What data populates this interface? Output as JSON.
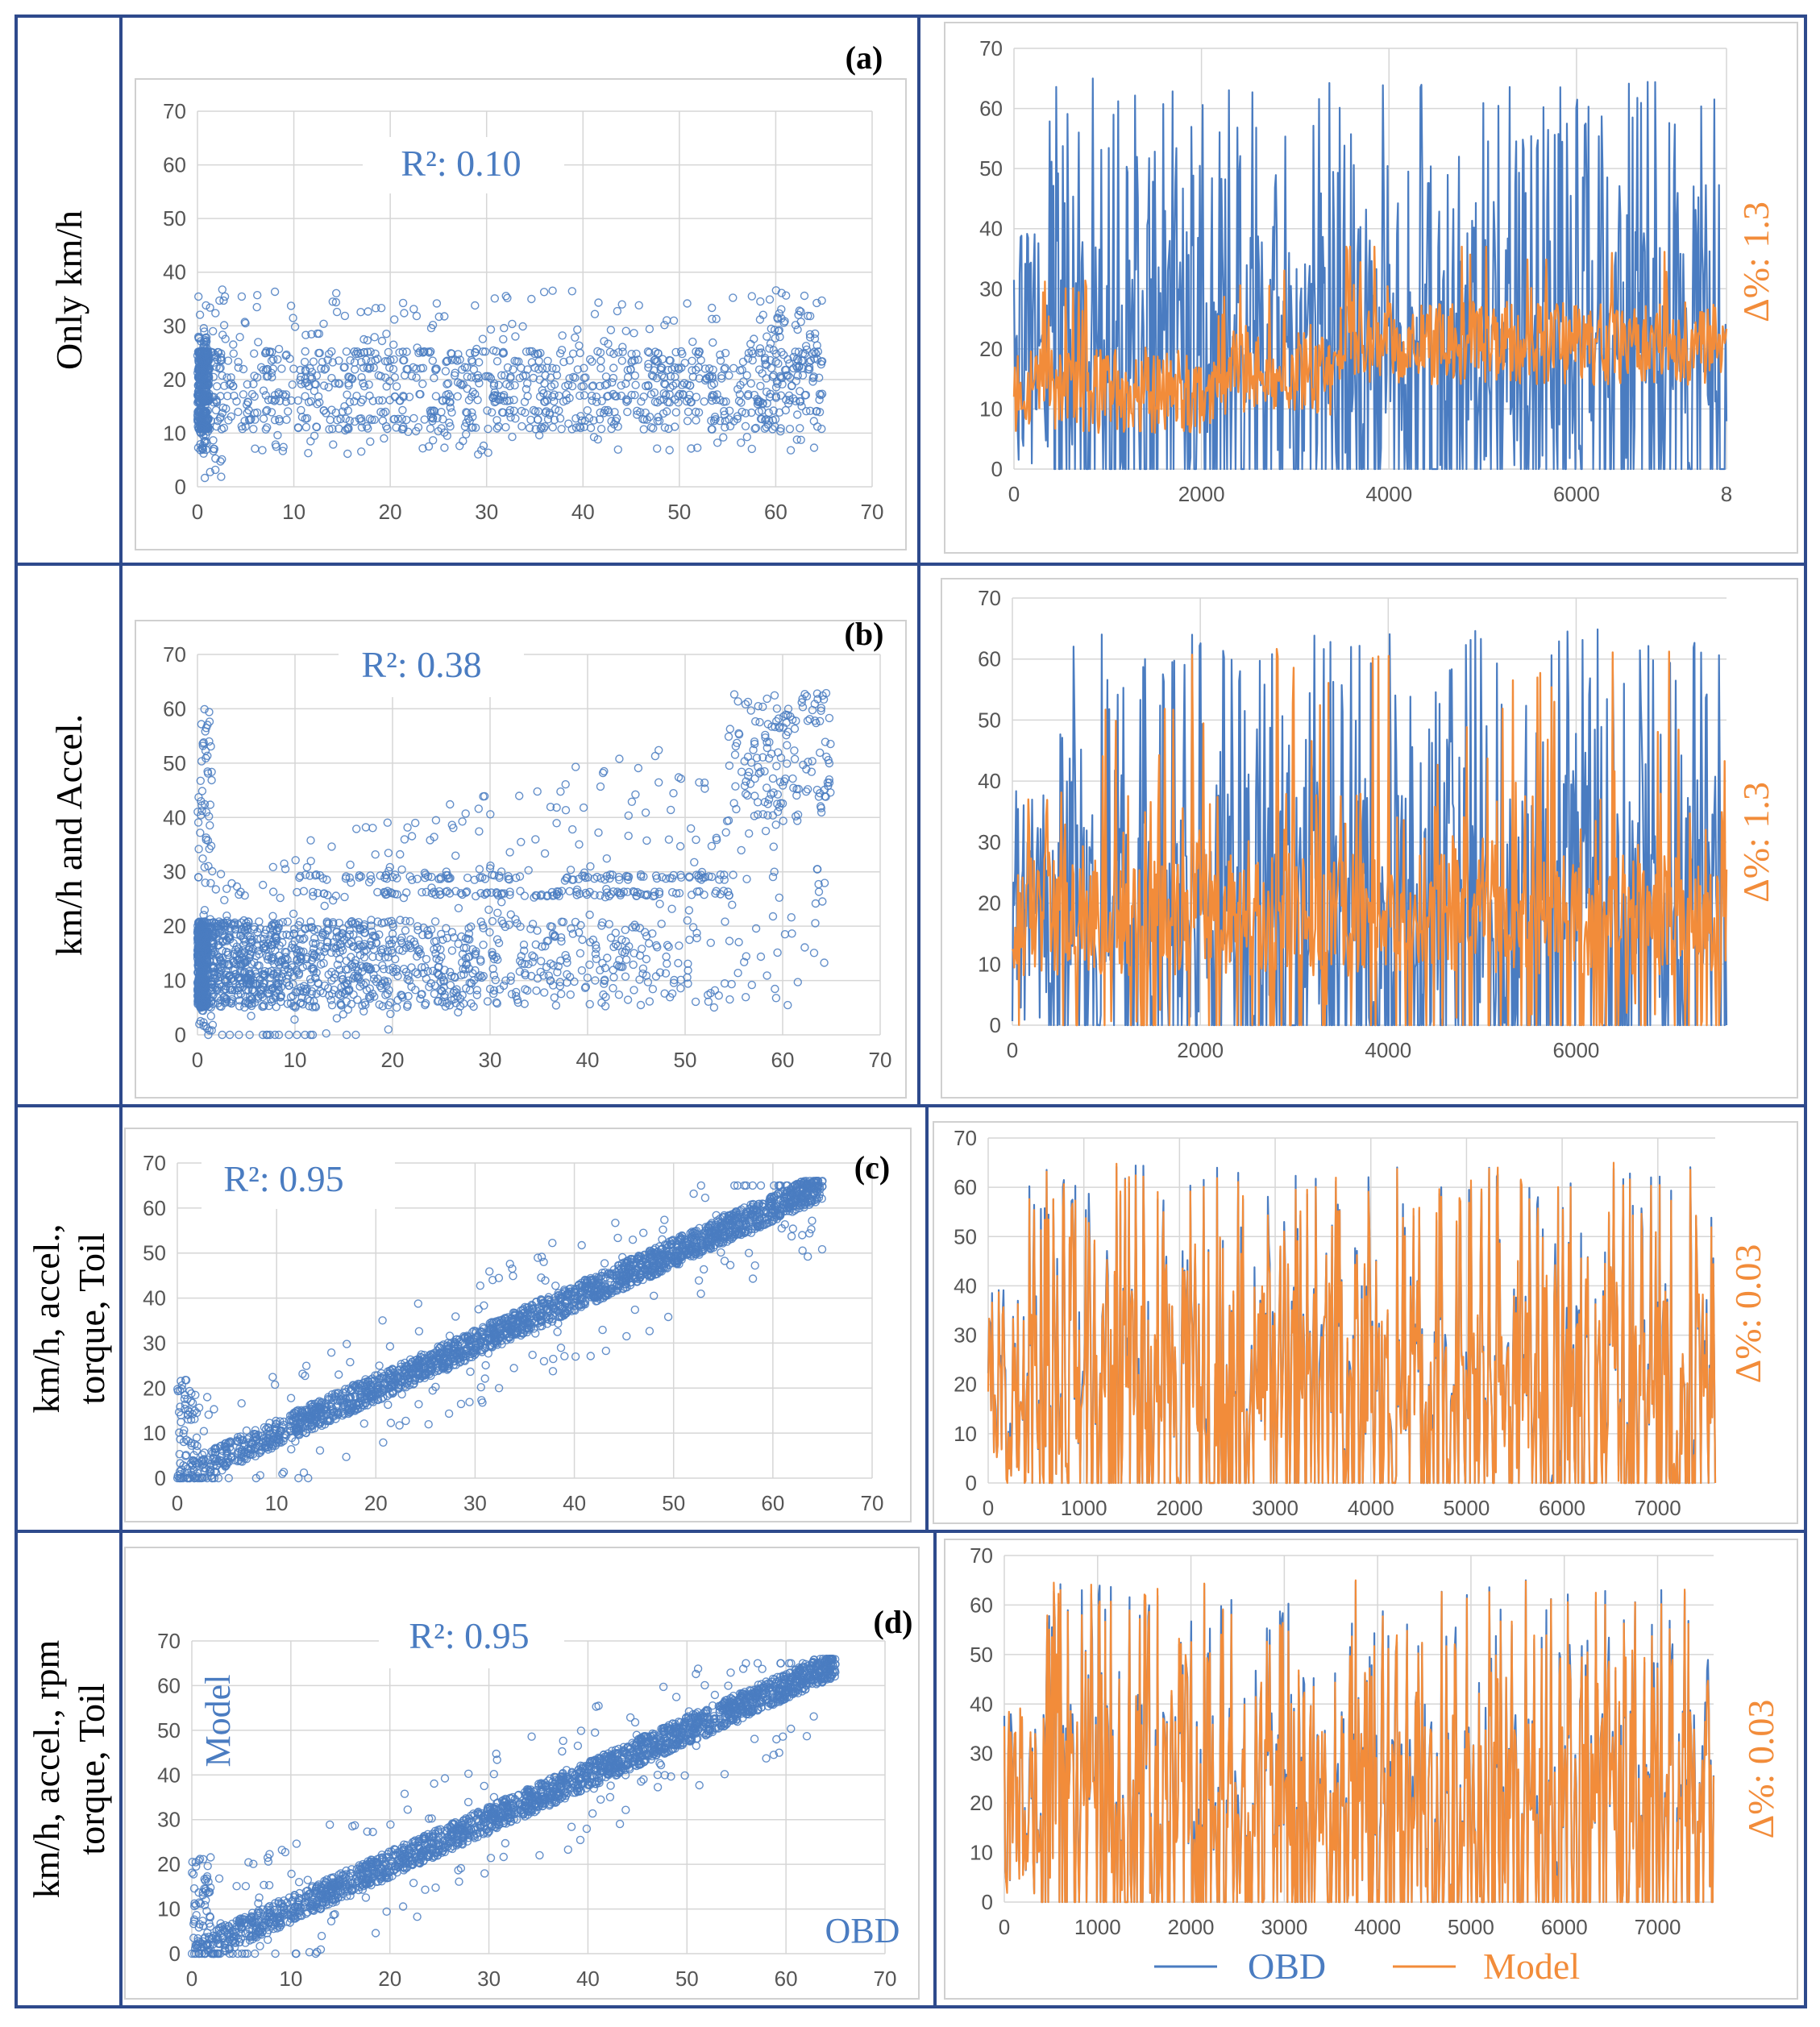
{
  "colors": {
    "frame": "#2e4a8c",
    "obd": "#4a7cc1",
    "model": "#f28c3a",
    "scatter": "#4a7cc1",
    "r2text": "#4a7cc1",
    "deltatext": "#f28c3a",
    "grid": "#d6d6d6",
    "tick": "#555555"
  },
  "rows": [
    {
      "id": "a",
      "row_label_lines": [
        "Only km/h"
      ],
      "panel_label": "(a)",
      "r2": "R²: 0.10",
      "delta": "Δ%: 1.3"
    },
    {
      "id": "b",
      "row_label_lines": [
        "km/h and Accel."
      ],
      "panel_label": "(b)",
      "r2": "R²: 0.38",
      "delta": "Δ%: 1.3"
    },
    {
      "id": "c",
      "row_label_lines": [
        "km/h, accel.,",
        "torque, Toil"
      ],
      "panel_label": "(c)",
      "r2": "R²: 0.95",
      "delta": "Δ%: 0.03"
    },
    {
      "id": "d",
      "row_label_lines": [
        "km/h, accel., rpm",
        "torque, Toil"
      ],
      "panel_label": "(d)",
      "r2": "R²: 0.95",
      "delta": "Δ%: 0.03"
    }
  ],
  "axis_labels": {
    "model": "Model",
    "obd": "OBD"
  },
  "legend": {
    "obd": "OBD",
    "model": "Model"
  },
  "chart_data": [
    {
      "id": "scatter-a",
      "type": "scatter",
      "title": "",
      "annotation": "R²: 0.10",
      "xlabel": "",
      "ylabel": "",
      "xlim": [
        0,
        70
      ],
      "ylim": [
        0,
        70
      ],
      "xticks": [
        0,
        10,
        20,
        30,
        40,
        50,
        60,
        70
      ],
      "yticks": [
        0,
        10,
        20,
        30,
        40,
        50,
        60,
        70
      ],
      "pattern": "Model predictions clustered in horizontal bands between ~6 and ~37 regardless of OBD speed; dense bands near 11, 16, 19, 22, 25"
    },
    {
      "id": "line-a",
      "type": "line",
      "title": "",
      "annotation": "Δ%: 1.3",
      "xlim": [
        0,
        7600
      ],
      "ylim": [
        0,
        70
      ],
      "xticks": [
        "0",
        "2000",
        "4000",
        "6000",
        "8"
      ],
      "yticks": [
        0,
        10,
        20,
        30,
        40,
        50,
        60,
        70
      ],
      "series": [
        {
          "name": "OBD",
          "range": [
            0,
            65
          ]
        },
        {
          "name": "Model",
          "range": [
            5,
            37
          ]
        }
      ]
    },
    {
      "id": "scatter-b",
      "type": "scatter",
      "title": "",
      "annotation": "R²: 0.38",
      "xlim": [
        0,
        70
      ],
      "ylim": [
        0,
        70
      ],
      "xticks": [
        0,
        10,
        20,
        30,
        40,
        50,
        60,
        70
      ],
      "yticks": [
        0,
        10,
        20,
        30,
        40,
        50,
        60,
        70
      ],
      "pattern": "Dense band 5-20, band near 26 and 29, increasing spread toward 60 at high OBD speed"
    },
    {
      "id": "line-b",
      "type": "line",
      "title": "",
      "annotation": "Δ%: 1.3",
      "xlim": [
        0,
        7600
      ],
      "ylim": [
        0,
        70
      ],
      "xticks": [
        "0",
        "2000",
        "4000",
        "6000"
      ],
      "yticks": [
        0,
        10,
        20,
        30,
        40,
        50,
        60,
        70
      ],
      "series": [
        {
          "name": "OBD",
          "range": [
            0,
            65
          ]
        },
        {
          "name": "Model",
          "range": [
            0,
            63
          ]
        }
      ]
    },
    {
      "id": "scatter-c",
      "type": "scatter",
      "title": "",
      "annotation": "R²: 0.95",
      "xlim": [
        0,
        70
      ],
      "ylim": [
        0,
        70
      ],
      "xticks": [
        0,
        10,
        20,
        30,
        40,
        50,
        60,
        70
      ],
      "yticks": [
        0,
        10,
        20,
        30,
        40,
        50,
        60,
        70
      ],
      "pattern": "Points tightly along y = x from 0 to 65"
    },
    {
      "id": "line-c",
      "type": "line",
      "title": "",
      "annotation": "Δ%: 0.03",
      "xlim": [
        0,
        7600
      ],
      "ylim": [
        0,
        70
      ],
      "xticks": [
        "0",
        "1000",
        "2000",
        "3000",
        "4000",
        "5000",
        "6000",
        "7000"
      ],
      "yticks": [
        0,
        10,
        20,
        30,
        40,
        50,
        60,
        70
      ],
      "series": [
        {
          "name": "OBD",
          "range": [
            0,
            65
          ]
        },
        {
          "name": "Model",
          "range": [
            0,
            65
          ]
        }
      ]
    },
    {
      "id": "scatter-d",
      "type": "scatter",
      "title": "",
      "annotation": "R²: 0.95",
      "xlabel": "OBD",
      "ylabel": "Model",
      "xlim": [
        0,
        70
      ],
      "ylim": [
        0,
        70
      ],
      "xticks": [
        0,
        10,
        20,
        30,
        40,
        50,
        60,
        70
      ],
      "yticks": [
        0,
        10,
        20,
        30,
        40,
        50,
        60,
        70
      ],
      "pattern": "Points tightly along y = x from 0 to 65"
    },
    {
      "id": "line-d",
      "type": "line",
      "title": "",
      "annotation": "Δ%: 0.03",
      "xlim": [
        0,
        7600
      ],
      "ylim": [
        0,
        70
      ],
      "xticks": [
        "0",
        "1000",
        "2000",
        "3000",
        "4000",
        "5000",
        "6000",
        "7000"
      ],
      "yticks": [
        0,
        10,
        20,
        30,
        40,
        50,
        60,
        70
      ],
      "series": [
        {
          "name": "OBD",
          "range": [
            0,
            65
          ]
        },
        {
          "name": "Model",
          "range": [
            0,
            65
          ]
        }
      ]
    }
  ]
}
